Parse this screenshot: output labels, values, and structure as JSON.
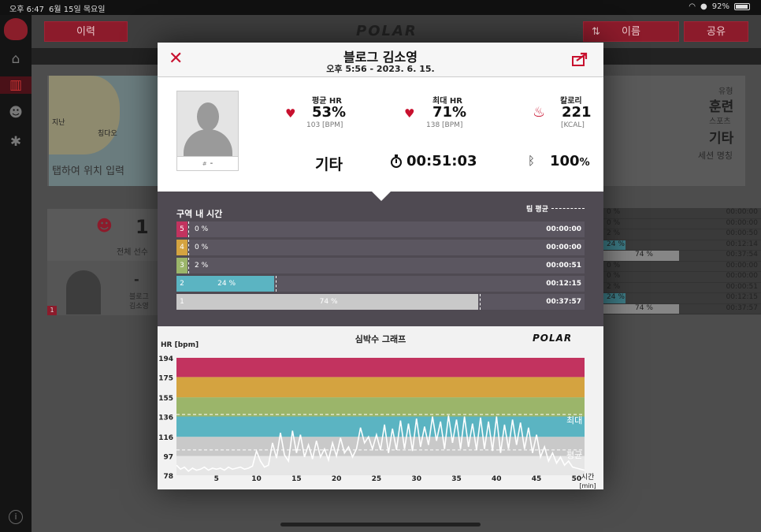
{
  "statusbar": {
    "time": "오후 6:47",
    "date": "6월 15일 목요일",
    "battery": "92%"
  },
  "topbar": {
    "history_label": "이력",
    "sort_label": "이름",
    "share_label": "공유",
    "logo": "POLAR"
  },
  "background": {
    "map_label": "탭하여 위치 입력",
    "map_city1": "지난",
    "map_city2": "칭다오",
    "type_label": "유형",
    "type_value": "훈련",
    "sport_label": "스포츠",
    "sport_value": "기타",
    "session_label": "세션 명칭",
    "participants_count": "1",
    "participants_label": "전체 선수",
    "player_dash": "-",
    "player_name_line1": "블로그",
    "player_name_line2": "김소영",
    "player_badge": "1",
    "team_rows": [
      {
        "pct": "0 %",
        "time": "00:00:00"
      },
      {
        "pct": "0 %",
        "time": "00:00:00"
      },
      {
        "pct": "2 %",
        "time": "00:00:50"
      },
      {
        "pct": "24 %",
        "time": "00:12:14"
      },
      {
        "pct": "74 %",
        "time": "00:37:54"
      }
    ],
    "player_rows": [
      {
        "pct": "0 %",
        "time": "00:00:00"
      },
      {
        "pct": "0 %",
        "time": "00:00:00"
      },
      {
        "pct": "2 %",
        "time": "00:00:51"
      },
      {
        "pct": "24 %",
        "time": "00:12:15"
      },
      {
        "pct": "74 %",
        "time": "00:37:57"
      }
    ]
  },
  "modal": {
    "title": "블로그 김소영",
    "subtitle": "오후 5:56 - 2023. 6. 15.",
    "avatar_hash": "#",
    "avatar_number": "-",
    "avg_hr_label": "평균 HR",
    "avg_hr_value": "53%",
    "avg_hr_bpm": "103 [BPM]",
    "max_hr_label": "최대 HR",
    "max_hr_value": "71%",
    "max_hr_bpm": "138 [BPM]",
    "calories_label": "칼로리",
    "calories_value": "221",
    "calories_unit": "[KCAL]",
    "sport": "기타",
    "duration": "00:51:03",
    "battery_value": "100",
    "battery_unit": "%"
  },
  "zones": {
    "title": "구역 내 시간",
    "team_avg_label": "팀 평균",
    "rows": [
      {
        "zone": "5",
        "pct": "0 %",
        "fraction": 0.0,
        "time": "00:00:00",
        "color": "#c2335f"
      },
      {
        "zone": "4",
        "pct": "0 %",
        "fraction": 0.0,
        "time": "00:00:00",
        "color": "#d4a340"
      },
      {
        "zone": "3",
        "pct": "2 %",
        "fraction": 0.02,
        "time": "00:00:51",
        "color": "#9bb56a"
      },
      {
        "zone": "2",
        "pct": "24 %",
        "fraction": 0.24,
        "time": "00:12:15",
        "color": "#5bb4c2"
      },
      {
        "zone": "1",
        "pct": "74 %",
        "fraction": 0.74,
        "time": "00:37:57",
        "color": "#c9c9c9"
      }
    ]
  },
  "graph": {
    "title": "심박수 그래프",
    "logo": "POLAR",
    "ylabel": "HR [bpm]",
    "xlabel_line1": "시간",
    "xlabel_line2": "[min]",
    "max_label": "최대",
    "avg_label": "평균"
  },
  "chart_data": {
    "type": "line",
    "title": "심박수 그래프",
    "xlabel": "시간 [min]",
    "ylabel": "HR [bpm]",
    "xlim": [
      0,
      51
    ],
    "ylim": [
      78,
      194
    ],
    "x_ticks": [
      5,
      10,
      15,
      20,
      25,
      30,
      35,
      40,
      45,
      50
    ],
    "y_ticks": [
      78,
      97,
      116,
      136,
      155,
      175,
      194
    ],
    "zone_bands": [
      {
        "from": 78,
        "to": 97,
        "color": "#e6e6e6"
      },
      {
        "from": 97,
        "to": 116,
        "color": "#c9c9c9"
      },
      {
        "from": 116,
        "to": 136,
        "color": "#5bb4c2"
      },
      {
        "from": 136,
        "to": 155,
        "color": "#9bb56a"
      },
      {
        "from": 155,
        "to": 175,
        "color": "#d4a340"
      },
      {
        "from": 175,
        "to": 194,
        "color": "#c2335f"
      }
    ],
    "max_hr": 138,
    "avg_hr": 103,
    "series": [
      {
        "x": [
          0,
          0.5,
          1,
          1.5,
          2,
          2.5,
          3,
          3.5,
          4,
          4.5,
          5,
          5.5,
          6,
          6.5,
          7,
          7.5,
          8,
          8.5,
          9,
          9.5,
          10,
          10.5,
          11,
          11.5,
          12,
          12.5,
          13,
          13.5,
          14,
          14.5,
          15,
          15.5,
          16,
          16.5,
          17,
          17.5,
          18,
          18.5,
          19,
          19.5,
          20,
          20.5,
          21,
          21.5,
          22,
          22.5,
          23,
          23.5,
          24,
          24.5,
          25,
          25.5,
          26,
          26.5,
          27,
          27.5,
          28,
          28.5,
          29,
          29.5,
          30,
          30.5,
          31,
          31.5,
          32,
          32.5,
          33,
          33.5,
          34,
          34.5,
          35,
          35.5,
          36,
          36.5,
          37,
          37.5,
          38,
          38.5,
          39,
          39.5,
          40,
          40.5,
          41,
          41.5,
          42,
          42.5,
          43,
          43.5,
          44,
          44.5,
          45,
          45.5,
          46,
          46.5,
          47,
          47.5,
          48,
          48.5,
          49,
          49.5,
          50,
          50.5,
          51
        ],
        "values": [
          88,
          84,
          86,
          82,
          85,
          83,
          84,
          86,
          83,
          85,
          84,
          85,
          83,
          86,
          84,
          85,
          86,
          84,
          85,
          87,
          102,
          92,
          86,
          88,
          110,
          95,
          120,
          98,
          92,
          122,
          100,
          118,
          96,
          108,
          94,
          112,
          96,
          104,
          93,
          110,
          97,
          115,
          100,
          106,
          96,
          104,
          125,
          110,
          116,
          104,
          118,
          103,
          128,
          100,
          124,
          103,
          132,
          104,
          129,
          102,
          134,
          106,
          126,
          108,
          136,
          112,
          131,
          104,
          137,
          110,
          133,
          104,
          136,
          106,
          129,
          103,
          135,
          104,
          131,
          102,
          136,
          100,
          128,
          104,
          133,
          108,
          130,
          104,
          125,
          100,
          118,
          96,
          106,
          92,
          100,
          90,
          96,
          88,
          92,
          86,
          85,
          84,
          83
        ]
      }
    ]
  }
}
